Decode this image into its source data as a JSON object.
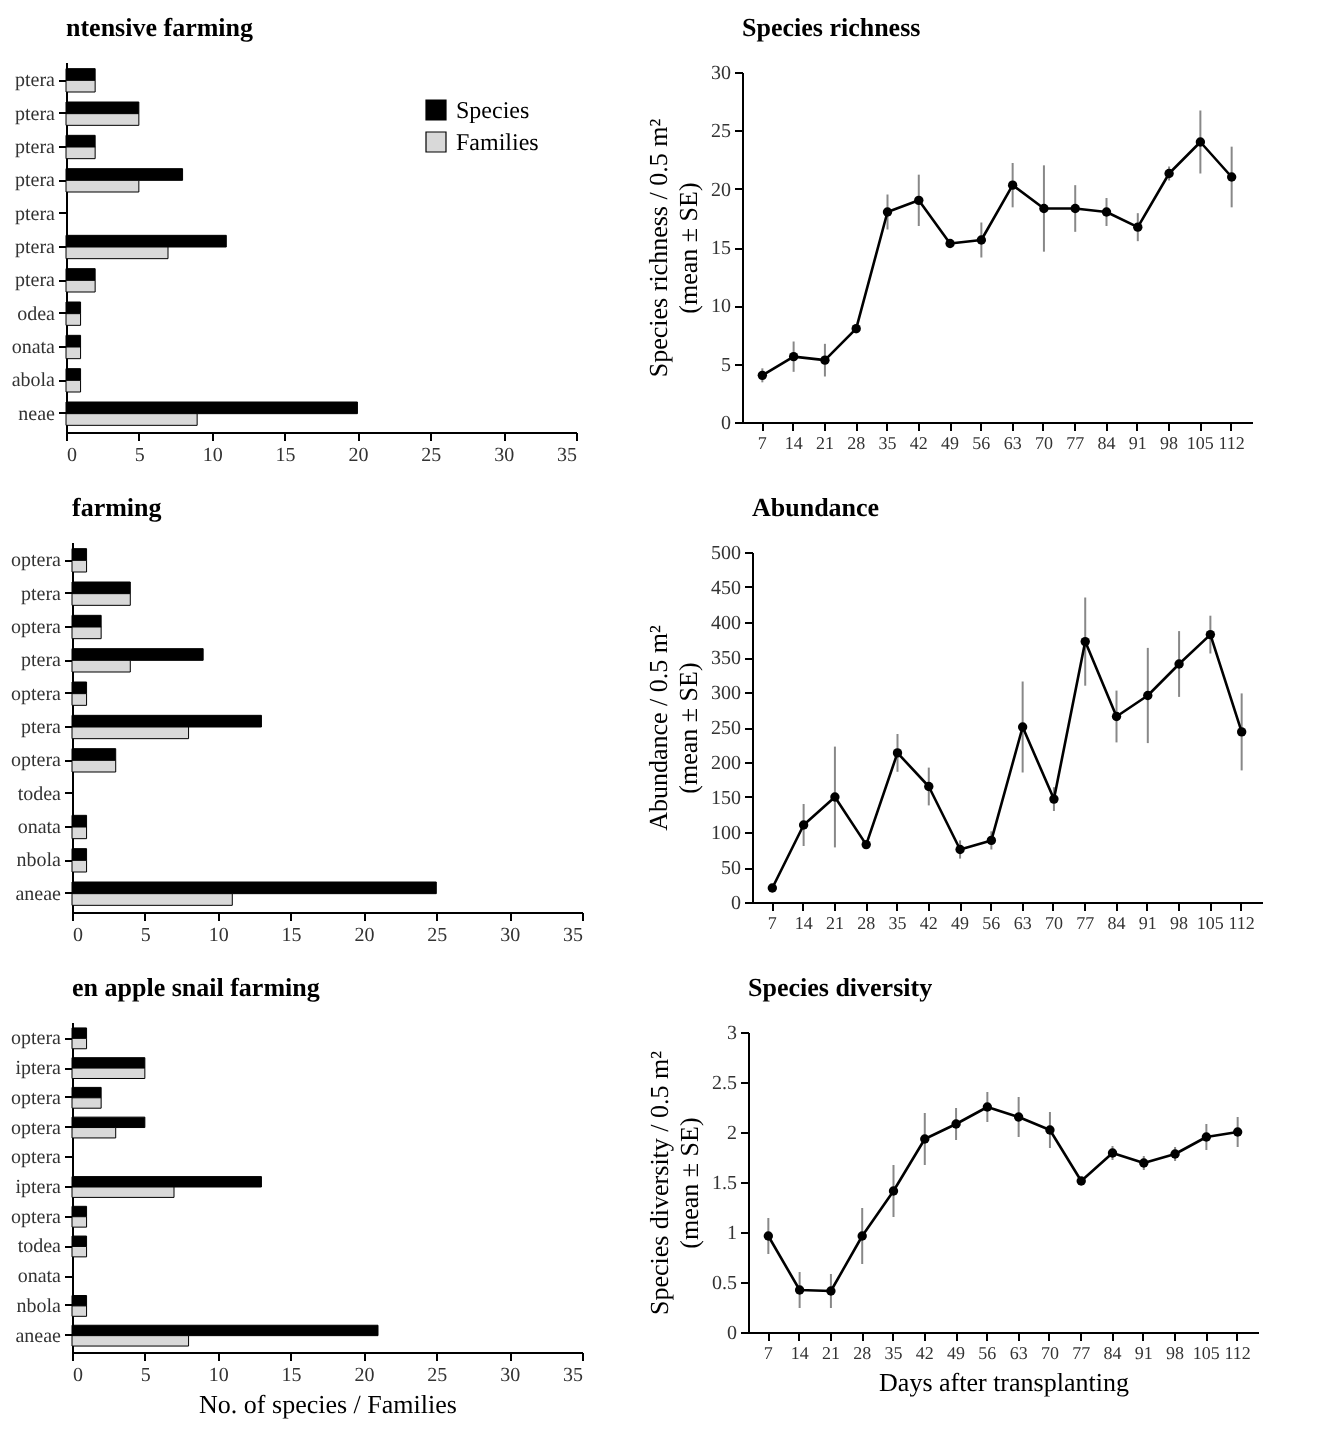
{
  "chart_data": [
    {
      "type": "bar",
      "orientation": "horizontal",
      "title": "ntensive farming",
      "categories": [
        "ptera",
        "ptera",
        "ptera",
        "ptera",
        "ptera",
        "ptera",
        "ptera",
        "odea",
        "onata",
        "abola",
        "neae"
      ],
      "series": [
        {
          "name": "Species",
          "color": "#000000",
          "values": [
            2,
            5,
            2,
            8,
            0,
            11,
            2,
            1,
            1,
            1,
            20
          ]
        },
        {
          "name": "Families",
          "color": "#d9d9d9",
          "values": [
            2,
            5,
            2,
            5,
            0,
            7,
            2,
            1,
            1,
            1,
            9
          ]
        }
      ],
      "xlim": [
        0,
        35
      ],
      "xticks": [
        0,
        5,
        10,
        15,
        20,
        25,
        30,
        35
      ],
      "legend": "top right"
    },
    {
      "type": "line",
      "title": "Species richness",
      "ylabel": "Species richness / 0.5 m²\n(mean ± SE)",
      "categories": [
        "7",
        "14",
        "21",
        "28",
        "35",
        "42",
        "49",
        "56",
        "63",
        "70",
        "77",
        "84",
        "91",
        "98",
        "105",
        "112"
      ],
      "series": [
        {
          "color": "#000000",
          "values": [
            4,
            5.6,
            5.3,
            8,
            18,
            19,
            15.3,
            15.6,
            20.3,
            18.3,
            18.3,
            18,
            16.7,
            21.3,
            24,
            21
          ],
          "errors": [
            0.6,
            1.3,
            1.4,
            0.4,
            1.5,
            2.2,
            0.2,
            1.5,
            1.9,
            3.7,
            2,
            1.2,
            1.2,
            0.6,
            2.7,
            2.6
          ]
        }
      ],
      "ylim": [
        0,
        30
      ],
      "yticks": [
        0,
        5,
        10,
        15,
        20,
        25,
        30
      ],
      "marker": "circle"
    },
    {
      "type": "bar",
      "orientation": "horizontal",
      "title": "farming",
      "categories": [
        "optera",
        "ptera",
        "optera",
        "ptera",
        "optera",
        "ptera",
        "optera",
        "todea",
        "onata",
        "nbola",
        "aneae"
      ],
      "series": [
        {
          "color": "#000000",
          "values": [
            1,
            4,
            2,
            9,
            1,
            13,
            3,
            0,
            1,
            1,
            25
          ]
        },
        {
          "color": "#d9d9d9",
          "values": [
            1,
            4,
            2,
            4,
            1,
            8,
            3,
            0,
            1,
            1,
            11
          ]
        }
      ],
      "xlim": [
        0,
        35
      ],
      "xticks": [
        0,
        5,
        10,
        15,
        20,
        25,
        30,
        35
      ]
    },
    {
      "type": "line",
      "title": "Abundance",
      "ylabel": "Abundance / 0.5 m²\n(mean ± SE)",
      "categories": [
        "7",
        "14",
        "21",
        "28",
        "35",
        "42",
        "49",
        "56",
        "63",
        "70",
        "77",
        "84",
        "91",
        "98",
        "105",
        "112"
      ],
      "series": [
        {
          "color": "#000000",
          "values": [
            20,
            110,
            150,
            82,
            213,
            165,
            75,
            88,
            250,
            147,
            372,
            265,
            295,
            340,
            382,
            243
          ],
          "errors": [
            3,
            30,
            72,
            5,
            27,
            27,
            13,
            13,
            65,
            17,
            63,
            37,
            68,
            47,
            27,
            55
          ]
        }
      ],
      "ylim": [
        0,
        500
      ],
      "yticks": [
        0,
        50,
        100,
        150,
        200,
        250,
        300,
        350,
        400,
        450,
        500
      ],
      "marker": "circle"
    },
    {
      "type": "bar",
      "orientation": "horizontal",
      "title": "en apple snail farming",
      "xlabel": "No. of species / Families",
      "categories": [
        "optera",
        "iptera",
        "optera",
        "optera",
        "optera",
        "iptera",
        "optera",
        "todea",
        "onata",
        "nbola",
        "aneae"
      ],
      "series": [
        {
          "color": "#000000",
          "values": [
            1,
            5,
            2,
            5,
            0,
            13,
            1,
            1,
            0,
            1,
            21
          ]
        },
        {
          "color": "#d9d9d9",
          "values": [
            1,
            5,
            2,
            3,
            0,
            7,
            1,
            1,
            0,
            1,
            8
          ]
        }
      ],
      "xlim": [
        0,
        35
      ],
      "xticks": [
        0,
        5,
        10,
        15,
        20,
        25,
        30,
        35
      ]
    },
    {
      "type": "line",
      "title": "Species diversity",
      "xlabel": "Days after transplanting",
      "ylabel": "Species diversity / 0.5 m²\n(mean ± SE)",
      "categories": [
        "7",
        "14",
        "21",
        "28",
        "35",
        "42",
        "49",
        "56",
        "63",
        "70",
        "77",
        "84",
        "91",
        "98",
        "105",
        "112"
      ],
      "series": [
        {
          "color": "#000000",
          "values": [
            0.96,
            0.42,
            0.41,
            0.96,
            1.41,
            1.93,
            2.08,
            2.25,
            2.15,
            2.02,
            1.51,
            1.79,
            1.69,
            1.78,
            1.95,
            2.0
          ],
          "errors": [
            0.18,
            0.18,
            0.17,
            0.28,
            0.26,
            0.26,
            0.16,
            0.15,
            0.2,
            0.18,
            0.02,
            0.07,
            0.07,
            0.07,
            0.13,
            0.15
          ]
        }
      ],
      "ylim": [
        0,
        3
      ],
      "yticks": [
        0,
        0.5,
        1,
        1.5,
        2,
        2.5,
        3
      ],
      "marker": "circle"
    }
  ]
}
